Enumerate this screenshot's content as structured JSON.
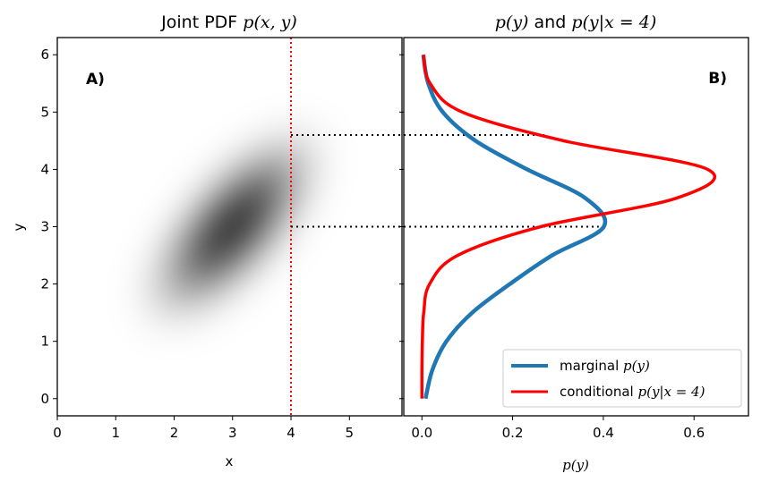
{
  "chart_data": [
    {
      "type": "heatmap",
      "title_plain": "Joint PDF ",
      "title_math": "p(x, y)",
      "panel_label": "A)",
      "xlabel": "x",
      "ylabel": "y",
      "xlim": [
        0,
        5.9
      ],
      "ylim": [
        -0.3,
        6.3
      ],
      "xticks": [
        0,
        1,
        2,
        3,
        4,
        5
      ],
      "yticks": [
        0,
        1,
        2,
        3,
        4,
        5,
        6
      ],
      "distribution": {
        "mean": [
          3,
          3
        ],
        "std": [
          0.75,
          0.85
        ],
        "correlation": 0.78
      },
      "vline": {
        "x": 4,
        "color": "#ff0000",
        "style": "dotted"
      },
      "hlines_dotted_y": [
        4.6,
        3.0
      ],
      "grid": false
    },
    {
      "type": "line",
      "title_parts": [
        "p(y)",
        " and ",
        "p(y|x = 4)"
      ],
      "panel_label": "B)",
      "xlabel": "p(y)",
      "xlim": [
        -0.04,
        0.72
      ],
      "ylim": [
        -0.3,
        6.3
      ],
      "xticks": [
        "0.0",
        "0.2",
        "0.4",
        "0.6"
      ],
      "xtick_values": [
        0,
        0.2,
        0.4,
        0.6
      ],
      "yticks": [
        0,
        1,
        2,
        3,
        4,
        5,
        6
      ],
      "legend_position": "lower-right",
      "grid": false,
      "series": [
        {
          "name_plain": "marginal ",
          "name_math": "p(y)",
          "color": "#1f77b4",
          "y": [
            0,
            0.5,
            1,
            1.5,
            2,
            2.5,
            3,
            3.5,
            4,
            4.5,
            5,
            5.5,
            6
          ],
          "values": [
            0.008,
            0.023,
            0.054,
            0.111,
            0.194,
            0.287,
            0.401,
            0.36,
            0.232,
            0.118,
            0.046,
            0.014,
            0.003
          ]
        },
        {
          "name_plain": "conditional ",
          "name_math": "p(y|x = 4)",
          "color": "#ff0000",
          "y": [
            0,
            0.5,
            1,
            1.5,
            2,
            2.5,
            3,
            3.5,
            4,
            4.5,
            5,
            5.5,
            6
          ],
          "values": [
            0,
            0,
            0.001,
            0.004,
            0.017,
            0.079,
            0.262,
            0.562,
            0.63,
            0.312,
            0.089,
            0.018,
            0.003
          ]
        }
      ],
      "hlines_dotted": [
        {
          "y": 4.6,
          "x_end": 0.27
        },
        {
          "y": 3.0,
          "x_end": 0.39
        }
      ]
    }
  ]
}
